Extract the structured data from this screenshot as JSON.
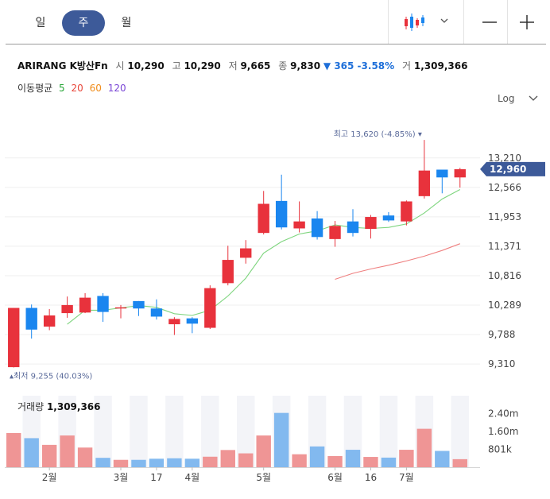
{
  "tabs": [
    {
      "label": "일",
      "active": false
    },
    {
      "label": "주",
      "active": true
    },
    {
      "label": "월",
      "active": false
    }
  ],
  "toolbar": {
    "chart_type_icon": "candlestick-icon",
    "zoom_out_icon": "minus-icon",
    "zoom_in_icon": "plus-icon"
  },
  "stock": {
    "name": "ARIRANG K방산Fn",
    "open_label": "시",
    "open": "10,290",
    "high_label": "고",
    "high": "10,290",
    "low_label": "저",
    "low": "9,665",
    "close_label": "종",
    "close": "9,830",
    "change": "▼ 365 -3.58%",
    "volume_label": "거",
    "volume": "1,309,366"
  },
  "ma_legend": {
    "label": "이동평균",
    "items": [
      {
        "label": "5",
        "color": "#25a535"
      },
      {
        "label": "20",
        "color": "#e8463a"
      },
      {
        "label": "60",
        "color": "#f08c1a"
      },
      {
        "label": "120",
        "color": "#7a46d6"
      }
    ]
  },
  "scale_button": "Log",
  "colors": {
    "up": "#e8323c",
    "down": "#1a86ef",
    "ma5": "#7ed57e",
    "ma20": "#ef8080",
    "current": "#3d5a99"
  },
  "chart_data": {
    "type": "candlestick",
    "scale": "log",
    "ylim": [
      9100,
      14300
    ],
    "y_ticks": [
      "13,210",
      "12,566",
      "11,953",
      "11,371",
      "10,816",
      "10,289",
      "9,788",
      "9,310"
    ],
    "current_price": "12,960",
    "candles": [
      {
        "o": 9260,
        "h": 10240,
        "l": 9255,
        "c": 10240
      },
      {
        "o": 10240,
        "h": 10300,
        "l": 9720,
        "c": 9870
      },
      {
        "o": 9920,
        "h": 10220,
        "l": 9860,
        "c": 10110
      },
      {
        "o": 10150,
        "h": 10440,
        "l": 10070,
        "c": 10290
      },
      {
        "o": 10160,
        "h": 10500,
        "l": 10150,
        "c": 10420
      },
      {
        "o": 10450,
        "h": 10500,
        "l": 10000,
        "c": 10170
      },
      {
        "o": 10230,
        "h": 10290,
        "l": 10060,
        "c": 10250
      },
      {
        "o": 10360,
        "h": 10360,
        "l": 10100,
        "c": 10230
      },
      {
        "o": 10230,
        "h": 10390,
        "l": 10040,
        "c": 10090
      },
      {
        "o": 9960,
        "h": 10080,
        "l": 9780,
        "c": 10050
      },
      {
        "o": 10060,
        "h": 10080,
        "l": 9810,
        "c": 9970
      },
      {
        "o": 9900,
        "h": 10640,
        "l": 9880,
        "c": 10590
      },
      {
        "o": 10680,
        "h": 11380,
        "l": 10640,
        "c": 11110
      },
      {
        "o": 11150,
        "h": 11490,
        "l": 11040,
        "c": 11330
      },
      {
        "o": 11630,
        "h": 12490,
        "l": 11600,
        "c": 12220
      },
      {
        "o": 12280,
        "h": 12840,
        "l": 11700,
        "c": 11740
      },
      {
        "o": 11720,
        "h": 12270,
        "l": 11640,
        "c": 11860
      },
      {
        "o": 11920,
        "h": 12070,
        "l": 11500,
        "c": 11550
      },
      {
        "o": 11510,
        "h": 11870,
        "l": 11360,
        "c": 11770
      },
      {
        "o": 11860,
        "h": 12110,
        "l": 11560,
        "c": 11630
      },
      {
        "o": 11710,
        "h": 11990,
        "l": 11520,
        "c": 11950
      },
      {
        "o": 11980,
        "h": 12050,
        "l": 11850,
        "c": 11880
      },
      {
        "o": 11860,
        "h": 12290,
        "l": 11780,
        "c": 12270
      },
      {
        "o": 12380,
        "h": 13620,
        "l": 12330,
        "c": 12930
      },
      {
        "o": 12950,
        "h": 12950,
        "l": 12440,
        "c": 12780
      },
      {
        "o": 12780,
        "h": 12990,
        "l": 12560,
        "c": 12960
      }
    ],
    "ma5": [
      {
        "i": 3,
        "v": 9960
      },
      {
        "i": 4,
        "v": 10200
      },
      {
        "i": 5,
        "v": 10200
      },
      {
        "i": 6,
        "v": 10240
      },
      {
        "i": 7,
        "v": 10280
      },
      {
        "i": 8,
        "v": 10250
      },
      {
        "i": 9,
        "v": 10140
      },
      {
        "i": 10,
        "v": 10110
      },
      {
        "i": 11,
        "v": 10200
      },
      {
        "i": 12,
        "v": 10450
      },
      {
        "i": 13,
        "v": 10770
      },
      {
        "i": 14,
        "v": 11240
      },
      {
        "i": 15,
        "v": 11460
      },
      {
        "i": 16,
        "v": 11610
      },
      {
        "i": 17,
        "v": 11670
      },
      {
        "i": 18,
        "v": 11790
      },
      {
        "i": 19,
        "v": 11740
      },
      {
        "i": 20,
        "v": 11720
      },
      {
        "i": 21,
        "v": 11740
      },
      {
        "i": 22,
        "v": 11810
      },
      {
        "i": 23,
        "v": 12030
      },
      {
        "i": 24,
        "v": 12320
      },
      {
        "i": 25,
        "v": 12520
      }
    ],
    "ma20": [
      {
        "i": 18,
        "v": 10750
      },
      {
        "i": 19,
        "v": 10860
      },
      {
        "i": 20,
        "v": 10940
      },
      {
        "i": 21,
        "v": 11010
      },
      {
        "i": 22,
        "v": 11090
      },
      {
        "i": 23,
        "v": 11180
      },
      {
        "i": 24,
        "v": 11290
      },
      {
        "i": 25,
        "v": 11420
      }
    ],
    "high_marker": {
      "label": "최고 13,620 (-4.85%)",
      "index": 23,
      "value": 13620
    },
    "low_marker": {
      "label": "최저 9,255 (40.03%)",
      "index": 0,
      "value": 9255
    },
    "volume": {
      "label": "거래량",
      "value": "1,309,366",
      "ylim": [
        0,
        3200000
      ],
      "y_ticks": [
        "2.40m",
        "1.60m",
        "801k"
      ],
      "bars": [
        1530000,
        1300000,
        1000000,
        1420000,
        880000,
        420000,
        330000,
        330000,
        380000,
        400000,
        380000,
        470000,
        770000,
        620000,
        1420000,
        2430000,
        580000,
        930000,
        500000,
        780000,
        460000,
        430000,
        780000,
        1720000,
        730000,
        360000
      ],
      "directions": [
        "up",
        "down",
        "up",
        "up",
        "up",
        "down",
        "up",
        "down",
        "down",
        "down",
        "down",
        "up",
        "up",
        "up",
        "up",
        "down",
        "up",
        "down",
        "up",
        "down",
        "up",
        "down",
        "up",
        "up",
        "down",
        "up"
      ]
    },
    "x_ticks": [
      {
        "i": 2,
        "label": "2월"
      },
      {
        "i": 6,
        "label": "3월"
      },
      {
        "i": 8,
        "label": "17"
      },
      {
        "i": 10,
        "label": "4월"
      },
      {
        "i": 14,
        "label": "5월"
      },
      {
        "i": 18,
        "label": "6월"
      },
      {
        "i": 20,
        "label": "16"
      },
      {
        "i": 22,
        "label": "7월"
      }
    ]
  }
}
